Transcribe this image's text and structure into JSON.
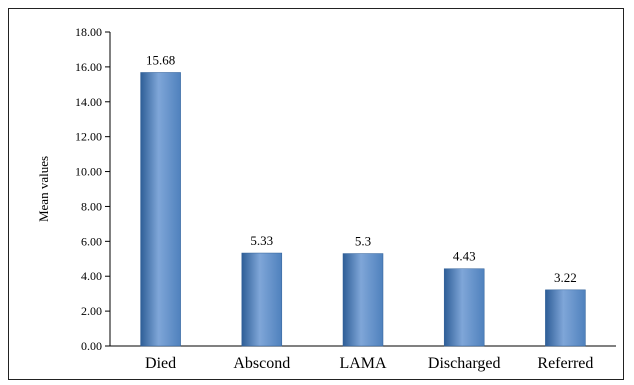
{
  "chart_data": {
    "type": "bar",
    "title": "",
    "xlabel": "",
    "ylabel": "Mean values",
    "ylim": [
      0,
      18
    ],
    "yticks": [
      "0.00",
      "2.00",
      "4.00",
      "6.00",
      "8.00",
      "10.00",
      "12.00",
      "14.00",
      "16.00",
      "18.00"
    ],
    "categories": [
      "Died",
      "Abscond",
      "LAMA",
      "Discharged",
      "Referred"
    ],
    "values": [
      15.68,
      5.33,
      5.3,
      4.43,
      3.22
    ],
    "data_labels": [
      "15.68",
      "5.33",
      "5.3",
      "4.43",
      "3.22"
    ],
    "bar_color": "#4F81BD",
    "bar_dark": "#2E5E97",
    "bar_light": "#7FA6D8",
    "grid": false,
    "legend": "none"
  }
}
